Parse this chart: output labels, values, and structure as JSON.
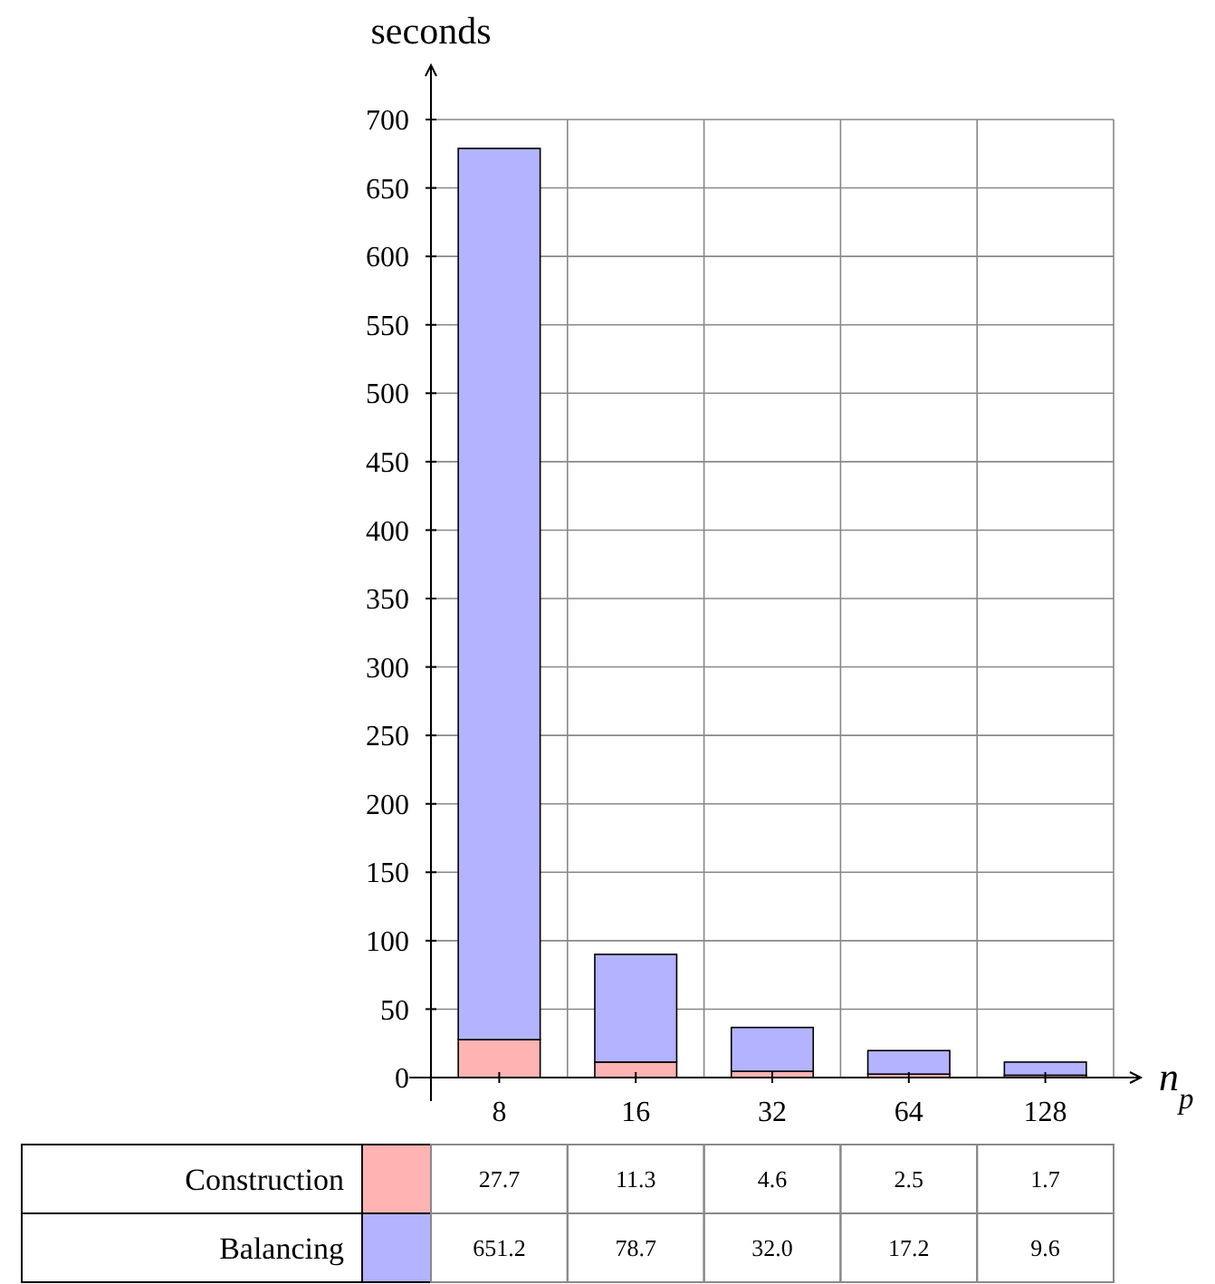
{
  "chart_data": {
    "type": "bar",
    "stacked": true,
    "ylabel": "seconds",
    "xlabel": "n$_{p}$",
    "categories": [
      "8",
      "16",
      "32",
      "64",
      "128"
    ],
    "series": [
      {
        "name": "Construction",
        "color": "#ffb3b3",
        "values": [
          27.7,
          11.3,
          4.6,
          2.5,
          1.7
        ],
        "value_labels": [
          "27.7",
          "11.3",
          "4.6",
          "2.5",
          "1.7"
        ]
      },
      {
        "name": "Balancing",
        "color": "#b3b3ff",
        "values": [
          651.2,
          78.7,
          32.0,
          17.2,
          9.6
        ],
        "value_labels": [
          "651.2",
          "78.7",
          "32.0",
          "17.2",
          "9.6"
        ]
      }
    ],
    "ylim": [
      0,
      700
    ],
    "yticks": [
      0,
      50,
      100,
      150,
      200,
      250,
      300,
      350,
      400,
      450,
      500,
      550,
      600,
      650,
      700
    ],
    "grid": true,
    "legend": "bottom"
  }
}
